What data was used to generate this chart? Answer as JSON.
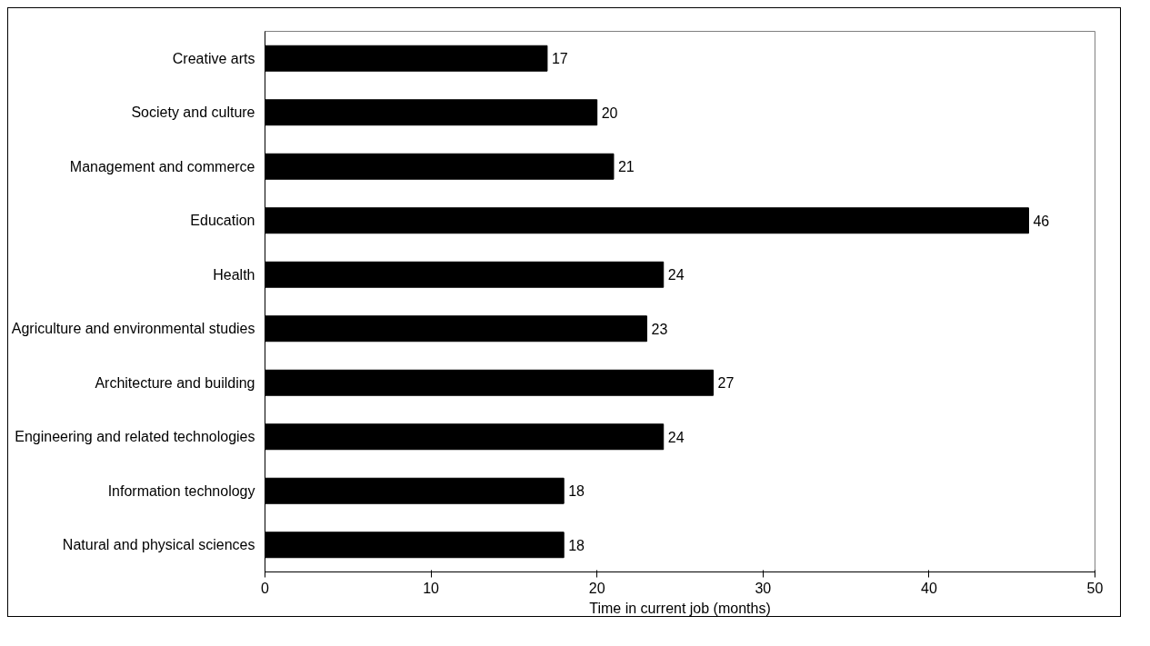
{
  "chart_data": {
    "type": "bar",
    "orientation": "horizontal",
    "xlabel": "Time in current job (months)",
    "categories": [
      "Creative arts",
      "Society and culture",
      "Management and commerce",
      "Education",
      "Health",
      "Agriculture and environmental studies",
      "Architecture and building",
      "Engineering and related technologies",
      "Information technology",
      "Natural and physical sciences"
    ],
    "values": [
      17,
      20,
      21,
      46,
      24,
      23,
      27,
      24,
      18,
      18
    ],
    "color": "#000000",
    "xlim": [
      0,
      50
    ],
    "xticks": [
      0,
      10,
      20,
      30,
      40,
      50
    ],
    "data_labels": true,
    "grid": false
  }
}
